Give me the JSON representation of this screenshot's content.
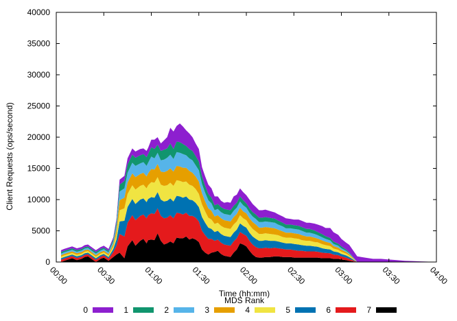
{
  "chart_data": {
    "type": "area",
    "stacked": true,
    "xlabel": "Time (hh:mm)",
    "ylabel": "Client Requests (ops/second)",
    "xlim": [
      0,
      240
    ],
    "ylim": [
      0,
      40000
    ],
    "x_ticks": [
      0,
      30,
      60,
      90,
      120,
      150,
      180,
      210,
      240
    ],
    "x_tick_labels": [
      "00:00",
      "00:30",
      "01:00",
      "01:30",
      "02:00",
      "02:30",
      "03:00",
      "03:30",
      "04:00"
    ],
    "y_ticks": [
      0,
      5000,
      10000,
      15000,
      20000,
      25000,
      30000,
      35000,
      40000
    ],
    "y_tick_labels": [
      "0",
      "5000",
      "10000",
      "15000",
      "20000",
      "25000",
      "30000",
      "35000",
      "40000"
    ],
    "grid": false,
    "legend_title": "MDS Rank",
    "legend_position": "bottom",
    "x": [
      3,
      5,
      10,
      13,
      16,
      18,
      20,
      25,
      28,
      30,
      33,
      36,
      38,
      40,
      43,
      45,
      48,
      50,
      53,
      55,
      57,
      58,
      60,
      62,
      64,
      66,
      68,
      70,
      72,
      74,
      76,
      78,
      80,
      82,
      84,
      86,
      88,
      90,
      92,
      94,
      96,
      98,
      100,
      102,
      104,
      106,
      108,
      110,
      112,
      114,
      116,
      118,
      120,
      122,
      124,
      126,
      128,
      130,
      132,
      135,
      138,
      140,
      143,
      145,
      148,
      150,
      153,
      155,
      158,
      160,
      163,
      165,
      168,
      170,
      173,
      175,
      178,
      180,
      183,
      185,
      190,
      195,
      200,
      205,
      210,
      215,
      220,
      225,
      230,
      235,
      240
    ],
    "series": [
      {
        "name": "0",
        "color": "#8d1fcf",
        "values": [
          300,
          300,
          300,
          300,
          300,
          300,
          300,
          300,
          300,
          300,
          300,
          300,
          400,
          800,
          800,
          1000,
          1000,
          1000,
          1000,
          900,
          1000,
          1000,
          1200,
          1500,
          1200,
          1200,
          1500,
          1800,
          2500,
          2800,
          2500,
          3000,
          2800,
          2500,
          2500,
          2200,
          2000,
          2000,
          1500,
          1500,
          1500,
          1500,
          1400,
          1200,
          1000,
          1000,
          1200,
          1200,
          1500,
          1300,
          1300,
          1300,
          1300,
          1400,
          1300,
          1200,
          1200,
          1200,
          1200,
          1100,
          1000,
          1000,
          1000,
          1000,
          900,
          900,
          1000,
          1000,
          1000,
          1000,
          1100,
          1200,
          1300,
          1300,
          1600,
          1500,
          1400,
          1200,
          1100,
          1200,
          900,
          700,
          500,
          500,
          400,
          300,
          200,
          150,
          100,
          50,
          0
        ]
      },
      {
        "name": "1",
        "color": "#11956e",
        "values": [
          250,
          250,
          250,
          250,
          250,
          250,
          250,
          250,
          250,
          250,
          250,
          350,
          600,
          1100,
          1200,
          1300,
          1300,
          1300,
          1300,
          1300,
          1400,
          1400,
          1500,
          1500,
          1300,
          1500,
          1600,
          1500,
          1800,
          1600,
          1700,
          1700,
          1600,
          1500,
          1500,
          1500,
          1500,
          1400,
          1200,
          1100,
          1000,
          900,
          800,
          800,
          800,
          800,
          800,
          800,
          800,
          800,
          800,
          800,
          700,
          700,
          700,
          700,
          700,
          700,
          700,
          650,
          650,
          650,
          600,
          600,
          600,
          600,
          600,
          600,
          600,
          600,
          550,
          500,
          500,
          450,
          400,
          380,
          350,
          300,
          200,
          150,
          0,
          0,
          0,
          0,
          0,
          0,
          0,
          0,
          0,
          0,
          0
        ]
      },
      {
        "name": "2",
        "color": "#56b4e9",
        "values": [
          250,
          250,
          250,
          250,
          250,
          250,
          250,
          250,
          250,
          250,
          250,
          400,
          700,
          1400,
          1500,
          1600,
          1700,
          1800,
          1700,
          1700,
          1700,
          1700,
          2000,
          1800,
          1800,
          1800,
          2000,
          2100,
          2200,
          2000,
          2200,
          2200,
          2200,
          2000,
          2000,
          2000,
          1800,
          1800,
          1500,
          1400,
          1300,
          1200,
          1000,
          1000,
          1000,
          1000,
          1000,
          1000,
          1000,
          1000,
          1000,
          1000,
          900,
          900,
          900,
          900,
          900,
          900,
          900,
          900,
          900,
          800,
          800,
          700,
          700,
          700,
          700,
          700,
          600,
          600,
          600,
          550,
          500,
          450,
          400,
          350,
          300,
          250,
          200,
          150,
          0,
          0,
          0,
          0,
          0,
          0,
          0,
          0,
          0,
          0,
          0
        ]
      },
      {
        "name": "3",
        "color": "#e69f00",
        "values": [
          250,
          250,
          250,
          250,
          250,
          250,
          250,
          250,
          250,
          250,
          250,
          400,
          800,
          1600,
          1700,
          1800,
          1900,
          2000,
          1900,
          1900,
          1900,
          1900,
          2100,
          2100,
          2100,
          2100,
          2200,
          2300,
          2300,
          2300,
          2300,
          2300,
          2300,
          2200,
          2200,
          2100,
          2000,
          2000,
          1800,
          1600,
          1500,
          1400,
          1200,
          1200,
          1200,
          1200,
          1200,
          1200,
          1200,
          1200,
          1200,
          1100,
          1100,
          1100,
          1100,
          1100,
          1000,
          1000,
          1000,
          1000,
          1000,
          900,
          900,
          800,
          800,
          800,
          800,
          800,
          700,
          700,
          700,
          600,
          600,
          550,
          500,
          400,
          350,
          300,
          250,
          200,
          0,
          0,
          0,
          0,
          0,
          0,
          0,
          0,
          0,
          0,
          0
        ]
      },
      {
        "name": "4",
        "color": "#f0e442",
        "values": [
          250,
          250,
          250,
          250,
          250,
          250,
          250,
          250,
          250,
          250,
          250,
          400,
          800,
          1800,
          2000,
          2100,
          2200,
          2300,
          2200,
          2200,
          2200,
          2200,
          2400,
          2400,
          2400,
          2400,
          2500,
          2500,
          2500,
          2500,
          2500,
          2500,
          2500,
          2400,
          2400,
          2300,
          2200,
          2100,
          2000,
          1800,
          1600,
          1500,
          1300,
          1300,
          1300,
          1300,
          1300,
          1300,
          1300,
          1300,
          1300,
          1200,
          1200,
          1200,
          1200,
          1200,
          1100,
          1100,
          1100,
          1100,
          1000,
          1000,
          900,
          900,
          900,
          900,
          900,
          800,
          800,
          800,
          700,
          700,
          650,
          600,
          550,
          450,
          400,
          350,
          300,
          250,
          0,
          0,
          0,
          0,
          0,
          0,
          0,
          0,
          0,
          0,
          0
        ]
      },
      {
        "name": "5",
        "color": "#0072b2",
        "values": [
          250,
          250,
          250,
          250,
          250,
          250,
          250,
          250,
          250,
          250,
          250,
          500,
          1000,
          2000,
          2500,
          2500,
          2600,
          2600,
          2600,
          2600,
          2600,
          2600,
          2600,
          2600,
          2600,
          2600,
          2700,
          2700,
          2700,
          2700,
          2700,
          2700,
          2700,
          2600,
          2600,
          2500,
          2400,
          2300,
          2200,
          2000,
          1800,
          1600,
          1400,
          1400,
          1400,
          1400,
          1400,
          1400,
          1400,
          1400,
          1400,
          1300,
          1300,
          1300,
          1300,
          1300,
          1200,
          1200,
          1200,
          1200,
          1100,
          1100,
          1000,
          1000,
          1000,
          1000,
          1000,
          900,
          900,
          900,
          800,
          800,
          700,
          650,
          600,
          500,
          450,
          400,
          350,
          300,
          0,
          0,
          0,
          0,
          0,
          0,
          0,
          0,
          0,
          0,
          0
        ]
      },
      {
        "name": "6",
        "color": "#e41a1c",
        "values": [
          350,
          350,
          350,
          350,
          350,
          350,
          350,
          350,
          350,
          350,
          350,
          800,
          1400,
          3000,
          3500,
          3800,
          4000,
          4100,
          4000,
          3900,
          4000,
          4000,
          4200,
          4200,
          4000,
          4000,
          4200,
          4100,
          4200,
          4000,
          4000,
          4000,
          3800,
          3800,
          3800,
          3600,
          3500,
          3300,
          3000,
          2800,
          2500,
          2200,
          1800,
          1800,
          1800,
          1800,
          1800,
          1800,
          1800,
          1800,
          1800,
          1700,
          1700,
          1600,
          1600,
          1600,
          1500,
          1500,
          1500,
          1400,
          1400,
          1300,
          1300,
          1200,
          1200,
          1200,
          1100,
          1100,
          1000,
          1000,
          1000,
          950,
          900,
          850,
          800,
          700,
          600,
          500,
          400,
          300,
          0,
          0,
          0,
          0,
          0,
          0,
          0,
          0,
          0,
          0,
          0
        ]
      },
      {
        "name": "7",
        "color": "#000000",
        "values": [
          0,
          200,
          600,
          300,
          500,
          800,
          900,
          0,
          500,
          700,
          200,
          800,
          1200,
          1500,
          600,
          2500,
          3500,
          2600,
          3400,
          3700,
          3000,
          3500,
          3600,
          3500,
          4600,
          3400,
          2800,
          3000,
          3300,
          3000,
          3900,
          3800,
          3800,
          4100,
          3600,
          3800,
          3600,
          3200,
          2000,
          1500,
          1200,
          1500,
          1600,
          1800,
          1300,
          1000,
          900,
          800,
          1500,
          2000,
          3000,
          2800,
          2500,
          1800,
          1200,
          800,
          700,
          700,
          800,
          800,
          900,
          900,
          800,
          800,
          800,
          700,
          700,
          700,
          700,
          700,
          700,
          700,
          600,
          600,
          600,
          500,
          500,
          400,
          300,
          200,
          0,
          0,
          0,
          0,
          0,
          0,
          0,
          0,
          0,
          0,
          0
        ]
      }
    ]
  }
}
